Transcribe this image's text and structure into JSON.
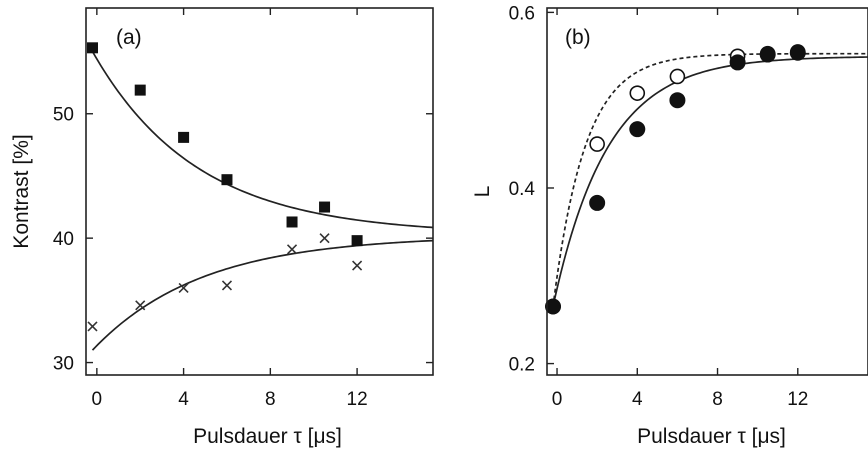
{
  "chart_data": [
    {
      "type": "scatter",
      "panel_label": "(a)",
      "xlabel": "Pulsdauer τ [μs]",
      "ylabel": "Kontrast [%]",
      "xlim": [
        -0.5,
        15.5
      ],
      "ylim": [
        29,
        58.5
      ],
      "x_ticks": [
        0,
        4,
        8,
        12
      ],
      "x_tick_labels": [
        "0",
        "4",
        "8",
        "12"
      ],
      "y_ticks": [
        30,
        40,
        50
      ],
      "y_tick_labels": [
        "30",
        "40",
        "50"
      ],
      "grid": false,
      "series": [
        {
          "marker": "square",
          "x": [
            -0.2,
            2,
            4,
            6,
            9,
            10.5,
            12
          ],
          "y": [
            55.3,
            51.9,
            48.1,
            44.7,
            41.3,
            42.5,
            39.8
          ]
        },
        {
          "marker": "x",
          "x": [
            -0.2,
            2,
            4,
            6,
            9,
            10.5,
            12
          ],
          "y": [
            32.9,
            34.6,
            36.0,
            36.2,
            39.1,
            40.0,
            37.8
          ]
        }
      ],
      "fits": [
        {
          "style": "solid",
          "y0": 55.0,
          "yinf": 40.3,
          "tau": 4.8
        },
        {
          "style": "solid",
          "y0": 31.0,
          "yinf": 40.2,
          "tau": 5.0
        }
      ]
    },
    {
      "type": "scatter",
      "panel_label": "(b)",
      "xlabel": "Pulsdauer τ [μs]",
      "ylabel": "L",
      "xlim": [
        -0.5,
        15.5
      ],
      "ylim": [
        0.187,
        0.605
      ],
      "x_ticks": [
        0,
        4,
        8,
        12
      ],
      "x_tick_labels": [
        "0",
        "4",
        "8",
        "12"
      ],
      "y_ticks": [
        0.2,
        0.4,
        0.6
      ],
      "y_tick_labels": [
        "0.2",
        "0.4",
        "0.6"
      ],
      "grid": false,
      "series": [
        {
          "marker": "open-circle",
          "x": [
            -0.2,
            2,
            4,
            6,
            9,
            10.5,
            12
          ],
          "y": [
            0.265,
            0.45,
            0.508,
            0.527,
            0.55,
            0.553,
            0.555
          ]
        },
        {
          "marker": "filled-circle",
          "x": [
            -0.2,
            2,
            4,
            6,
            9,
            10.5,
            12
          ],
          "y": [
            0.265,
            0.383,
            0.467,
            0.5,
            0.543,
            0.552,
            0.554
          ]
        }
      ],
      "fits": [
        {
          "style": "dashed",
          "y0": 0.265,
          "yinf": 0.553,
          "tau": 1.6
        },
        {
          "style": "solid",
          "y0": 0.265,
          "yinf": 0.55,
          "tau": 2.7
        }
      ]
    }
  ]
}
